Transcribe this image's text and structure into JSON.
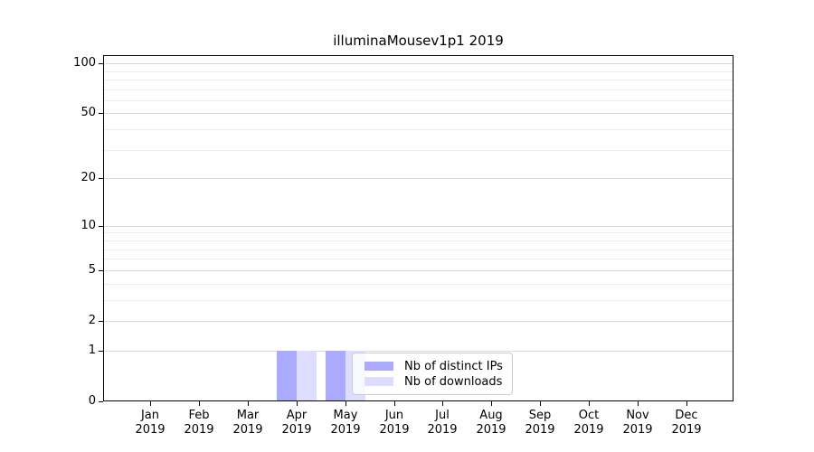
{
  "figure": {
    "background_color": "#ffffff",
    "text_color": "#000000"
  },
  "chart_data": {
    "type": "bar",
    "title": "illuminaMousev1p1 2019",
    "categories": [
      "Jan",
      "Feb",
      "Mar",
      "Apr",
      "May",
      "Jun",
      "Jul",
      "Aug",
      "Sep",
      "Oct",
      "Nov",
      "Dec"
    ],
    "x_year_label": "2019",
    "series": [
      {
        "name": "Nb of distinct IPs",
        "color": "#aaaaff",
        "values": [
          0,
          0,
          0,
          1,
          1,
          0,
          0,
          0,
          0,
          0,
          0,
          0
        ]
      },
      {
        "name": "Nb of downloads",
        "color": "#ddddff",
        "values": [
          0,
          0,
          0,
          1,
          1,
          0,
          0,
          0,
          0,
          0,
          0,
          0
        ]
      }
    ],
    "y_axis": {
      "scale": "log1p",
      "min": 0,
      "max": 112,
      "major_ticks": [
        0,
        1,
        2,
        5,
        10,
        20,
        50,
        100
      ],
      "minor_ticks": [
        3,
        4,
        6,
        7,
        8,
        9,
        30,
        40,
        60,
        70,
        80,
        90
      ]
    },
    "grid": {
      "orientation": "horizontal",
      "major_color": "#d9d9d9",
      "minor_color": "#ececec"
    },
    "legend": {
      "position": "inside-bottom-center",
      "border_color": "#cccccc",
      "background": "rgba(255,255,255,0.8)",
      "items": [
        "Nb of distinct IPs",
        "Nb of downloads"
      ]
    }
  }
}
